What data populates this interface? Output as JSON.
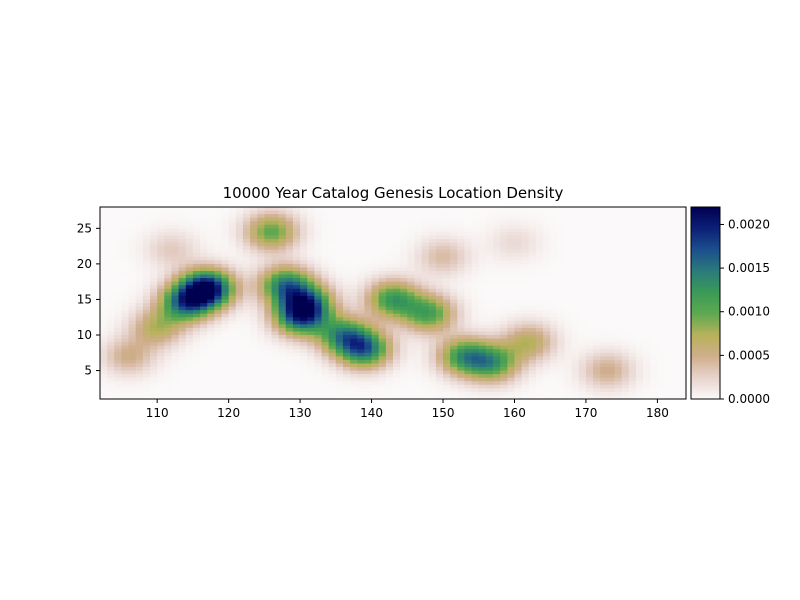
{
  "chart_data": {
    "type": "heatmap",
    "title": "10000 Year Catalog Genesis Location Density",
    "xlabel": "",
    "ylabel": "",
    "xlim": [
      102,
      184
    ],
    "ylim": [
      1,
      28
    ],
    "x_ticks": [
      110,
      120,
      130,
      140,
      150,
      160,
      170,
      180
    ],
    "y_ticks": [
      5,
      10,
      15,
      20,
      25
    ],
    "colorbar": {
      "range": [
        0,
        0.0022
      ],
      "ticks": [
        0.0,
        0.0005,
        0.001,
        0.0015,
        0.002
      ],
      "tick_labels": [
        "0.0000",
        "0.0005",
        "0.0010",
        "0.0015",
        "0.0020"
      ],
      "colormap": "gist_earth_r",
      "colors": [
        "#fbf9f9",
        "#e7d3cd",
        "#cfae8c",
        "#b7b15a",
        "#5fa850",
        "#3a9a56",
        "#2b7a7a",
        "#1b4f8c",
        "#0c1f78",
        "#000050"
      ]
    },
    "density_peaks": [
      {
        "x": 117,
        "y": 16.5,
        "value": 0.0022
      },
      {
        "x": 114,
        "y": 14.5,
        "value": 0.0015
      },
      {
        "x": 128,
        "y": 17,
        "value": 0.0014
      },
      {
        "x": 130,
        "y": 12.5,
        "value": 0.0015
      },
      {
        "x": 131,
        "y": 14.5,
        "value": 0.0013
      },
      {
        "x": 139,
        "y": 8,
        "value": 0.0015
      },
      {
        "x": 136,
        "y": 10,
        "value": 0.0012
      },
      {
        "x": 143,
        "y": 15,
        "value": 0.0012
      },
      {
        "x": 148,
        "y": 13,
        "value": 0.0011
      },
      {
        "x": 153,
        "y": 7,
        "value": 0.0012
      },
      {
        "x": 157,
        "y": 6,
        "value": 0.0011
      },
      {
        "x": 126,
        "y": 24.5,
        "value": 0.001
      },
      {
        "x": 110,
        "y": 11,
        "value": 0.0007
      },
      {
        "x": 106,
        "y": 7,
        "value": 0.0005
      },
      {
        "x": 162,
        "y": 9,
        "value": 0.0007
      },
      {
        "x": 173,
        "y": 5,
        "value": 0.0005
      },
      {
        "x": 150,
        "y": 21,
        "value": 0.0004
      },
      {
        "x": 160,
        "y": 23,
        "value": 0.0002
      },
      {
        "x": 112,
        "y": 22,
        "value": 0.0003
      }
    ]
  }
}
